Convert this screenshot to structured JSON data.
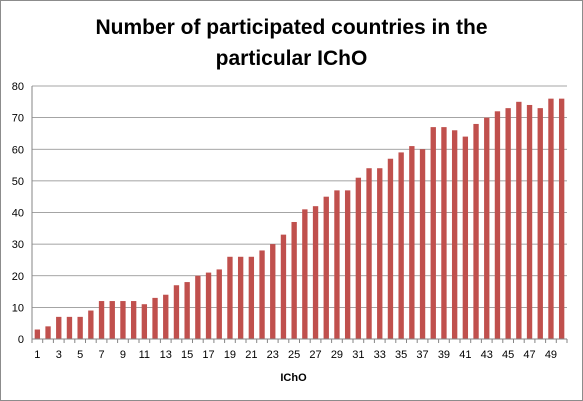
{
  "chart_data": {
    "type": "bar",
    "title_line1": "Number of participated countries in the",
    "title_line2": "particular IChO",
    "xlabel": "IChO",
    "ylabel": "",
    "ylim": [
      0,
      80
    ],
    "yticks": [
      0,
      10,
      20,
      30,
      40,
      50,
      60,
      70,
      80
    ],
    "bar_color": "#c0504d",
    "grid": true,
    "categories": [
      1,
      2,
      3,
      4,
      5,
      6,
      7,
      8,
      9,
      10,
      11,
      12,
      13,
      14,
      15,
      16,
      17,
      18,
      19,
      20,
      21,
      22,
      23,
      24,
      25,
      26,
      27,
      28,
      29,
      30,
      31,
      32,
      33,
      34,
      35,
      36,
      37,
      38,
      39,
      40,
      41,
      42,
      43,
      44,
      45,
      46,
      47,
      48,
      49,
      50
    ],
    "x_tick_labels": [
      1,
      3,
      5,
      7,
      9,
      11,
      13,
      15,
      17,
      19,
      21,
      23,
      25,
      27,
      29,
      31,
      33,
      35,
      37,
      39,
      41,
      43,
      45,
      47,
      49
    ],
    "values": [
      3,
      4,
      7,
      7,
      7,
      9,
      12,
      12,
      12,
      12,
      11,
      13,
      14,
      17,
      18,
      20,
      21,
      22,
      26,
      26,
      26,
      28,
      30,
      33,
      37,
      41,
      42,
      45,
      47,
      47,
      51,
      54,
      54,
      57,
      59,
      61,
      60,
      67,
      67,
      66,
      64,
      68,
      70,
      72,
      73,
      75,
      74,
      73,
      76,
      76
    ]
  }
}
